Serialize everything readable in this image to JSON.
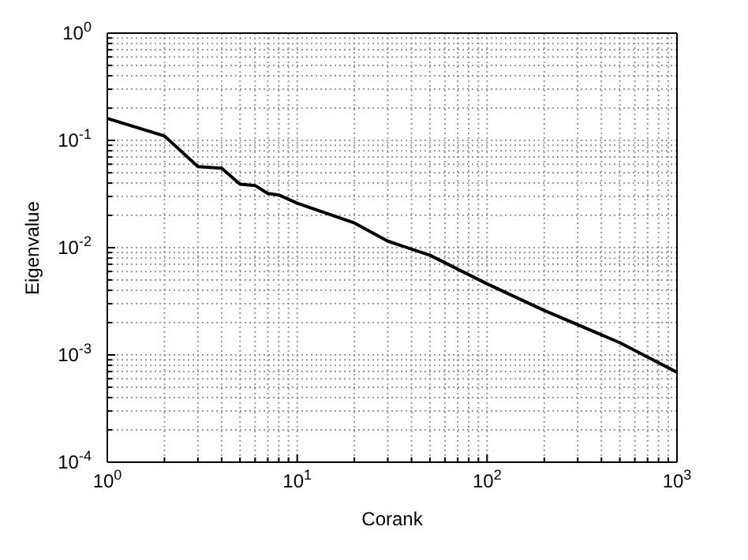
{
  "chart_data": {
    "type": "line",
    "xlabel": "Corank",
    "ylabel": "Eigenvalue",
    "log": "xy",
    "grid": true,
    "marker": "none",
    "line_style": "solid",
    "legend": false,
    "xlim": [
      1,
      1000
    ],
    "ylim": [
      0.0001,
      1
    ],
    "xticks": [
      {
        "value": 1,
        "label": "10$^{0}$"
      },
      {
        "value": 2,
        "label": null
      },
      {
        "value": 3,
        "label": null
      },
      {
        "value": 4,
        "label": null
      },
      {
        "value": 5,
        "label": null
      },
      {
        "value": 6,
        "label": null
      },
      {
        "value": 7,
        "label": null
      },
      {
        "value": 8,
        "label": null
      },
      {
        "value": 9,
        "label": null
      },
      {
        "value": 10,
        "label": "10$^{1}$"
      },
      {
        "value": 20,
        "label": null
      },
      {
        "value": 30,
        "label": null
      },
      {
        "value": 40,
        "label": null
      },
      {
        "value": 50,
        "label": null
      },
      {
        "value": 60,
        "label": null
      },
      {
        "value": 70,
        "label": null
      },
      {
        "value": 80,
        "label": null
      },
      {
        "value": 90,
        "label": null
      },
      {
        "value": 100,
        "label": "10$^{2}$"
      },
      {
        "value": 200,
        "label": null
      },
      {
        "value": 300,
        "label": null
      },
      {
        "value": 400,
        "label": null
      },
      {
        "value": 500,
        "label": null
      },
      {
        "value": 600,
        "label": null
      },
      {
        "value": 700,
        "label": null
      },
      {
        "value": 800,
        "label": null
      },
      {
        "value": 900,
        "label": null
      },
      {
        "value": 1000,
        "label": "10$^{3}$"
      }
    ],
    "yticks": [
      {
        "value": 0.0001,
        "label": "10$^{-4}$"
      },
      {
        "value": 0.0002,
        "label": null
      },
      {
        "value": 0.0003,
        "label": null
      },
      {
        "value": 0.0004,
        "label": null
      },
      {
        "value": 0.0005,
        "label": null
      },
      {
        "value": 0.0006,
        "label": null
      },
      {
        "value": 0.0007,
        "label": null
      },
      {
        "value": 0.0008,
        "label": null
      },
      {
        "value": 0.0009,
        "label": null
      },
      {
        "value": 0.001,
        "label": "10$^{-3}$"
      },
      {
        "value": 0.002,
        "label": null
      },
      {
        "value": 0.003,
        "label": null
      },
      {
        "value": 0.004,
        "label": null
      },
      {
        "value": 0.005,
        "label": null
      },
      {
        "value": 0.006,
        "label": null
      },
      {
        "value": 0.007,
        "label": null
      },
      {
        "value": 0.008,
        "label": null
      },
      {
        "value": 0.009,
        "label": null
      },
      {
        "value": 0.01,
        "label": "10$^{-2}$"
      },
      {
        "value": 0.02,
        "label": null
      },
      {
        "value": 0.03,
        "label": null
      },
      {
        "value": 0.04,
        "label": null
      },
      {
        "value": 0.05,
        "label": null
      },
      {
        "value": 0.06,
        "label": null
      },
      {
        "value": 0.07,
        "label": null
      },
      {
        "value": 0.08,
        "label": null
      },
      {
        "value": 0.09,
        "label": null
      },
      {
        "value": 0.1,
        "label": "10$^{-1}$"
      },
      {
        "value": 0.2,
        "label": null
      },
      {
        "value": 0.3,
        "label": null
      },
      {
        "value": 0.4,
        "label": null
      },
      {
        "value": 0.5,
        "label": null
      },
      {
        "value": 0.6,
        "label": null
      },
      {
        "value": 0.7,
        "label": null
      },
      {
        "value": 0.8,
        "label": null
      },
      {
        "value": 0.9,
        "label": null
      },
      {
        "value": 1,
        "label": "10$^{0}$"
      }
    ],
    "x": [
      1,
      2,
      3,
      4,
      5,
      6,
      7,
      8,
      10,
      20,
      30,
      50,
      100,
      200,
      500,
      1000
    ],
    "series": [
      {
        "color": "#000000",
        "values": [
          0.16,
          0.11,
          0.057,
          0.055,
          0.039,
          0.038,
          0.032,
          0.031,
          0.026,
          0.017,
          0.0115,
          0.0085,
          0.0046,
          0.0026,
          0.0013,
          0.00069
        ]
      }
    ]
  }
}
